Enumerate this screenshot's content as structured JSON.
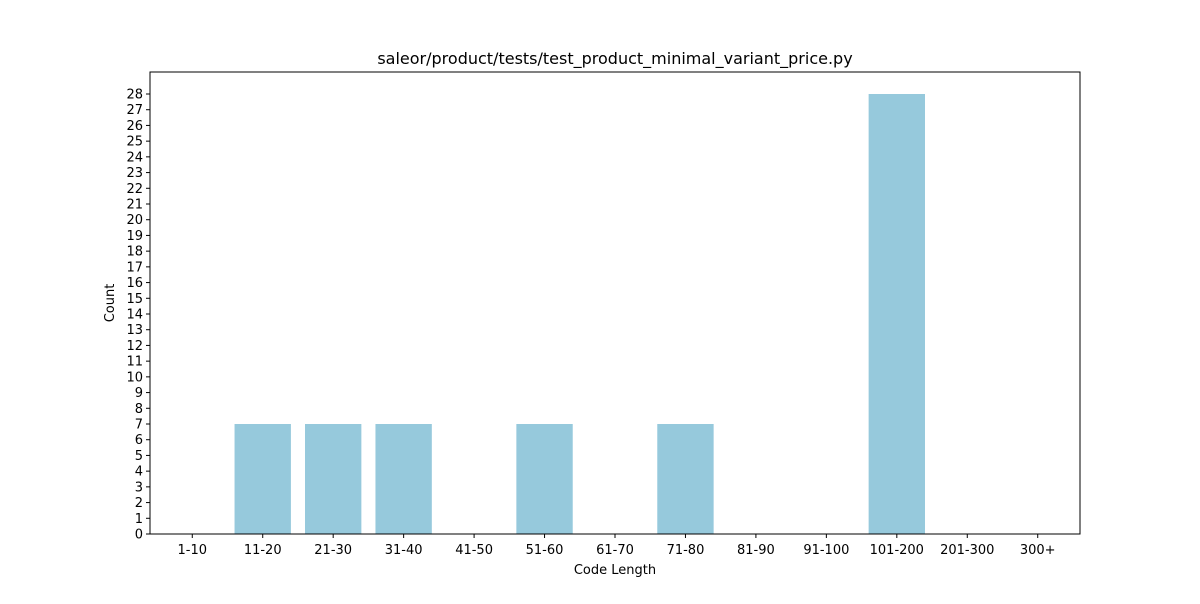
{
  "chart_data": {
    "type": "bar",
    "title": "saleor/product/tests/test_product_minimal_variant_price.py",
    "xlabel": "Code Length",
    "ylabel": "Count",
    "categories": [
      "1-10",
      "11-20",
      "21-30",
      "31-40",
      "41-50",
      "51-60",
      "61-70",
      "71-80",
      "81-90",
      "91-100",
      "101-200",
      "201-300",
      "300+"
    ],
    "values": [
      0,
      7,
      7,
      7,
      0,
      7,
      0,
      7,
      0,
      0,
      28,
      0,
      0
    ],
    "ylim": [
      0,
      29.4
    ],
    "yticks": [
      0,
      1,
      2,
      3,
      4,
      5,
      6,
      7,
      8,
      9,
      10,
      11,
      12,
      13,
      14,
      15,
      16,
      17,
      18,
      19,
      20,
      21,
      22,
      23,
      24,
      25,
      26,
      27,
      28
    ],
    "grid": false,
    "legend": "none",
    "bar_color": "#96c9dc"
  }
}
